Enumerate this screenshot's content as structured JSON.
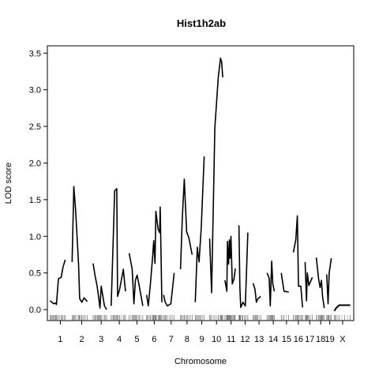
{
  "chart_data": {
    "type": "line",
    "title": "Hist1h2ab",
    "xlabel": "Chromosome",
    "ylabel": "LOD score",
    "ylim": [
      -0.15,
      3.6
    ],
    "yticks": [
      "0.0",
      "0.5",
      "1.0",
      "1.5",
      "2.0",
      "2.5",
      "3.0",
      "3.5"
    ],
    "chromosomes": [
      {
        "name": "1",
        "length": 195,
        "points": [
          [
            3,
            0.12
          ],
          [
            20,
            0.1
          ],
          [
            35,
            0.08
          ],
          [
            50,
            0.09
          ],
          [
            62,
            0.07
          ],
          [
            80,
            0.42
          ],
          [
            105,
            0.44
          ],
          [
            122,
            0.58
          ],
          [
            142,
            0.68
          ]
        ]
      },
      {
        "name": "2",
        "length": 182,
        "points": [
          [
            2,
            0.65
          ],
          [
            18,
            1.68
          ],
          [
            35,
            1.35
          ],
          [
            62,
            0.62
          ],
          [
            72,
            0.15
          ],
          [
            92,
            0.1
          ],
          [
            112,
            0.16
          ],
          [
            142,
            0.11
          ]
        ]
      },
      {
        "name": "3",
        "length": 160,
        "points": [
          [
            5,
            0.63
          ],
          [
            25,
            0.45
          ],
          [
            42,
            0.32
          ],
          [
            55,
            0.18
          ],
          [
            68,
            0.02
          ],
          [
            80,
            0.32
          ],
          [
            110,
            0.05
          ],
          [
            130,
            0.0
          ]
        ]
      },
      {
        "name": "4",
        "length": 156,
        "points": [
          [
            3,
            0.05
          ],
          [
            22,
            0.96
          ],
          [
            35,
            1.62
          ],
          [
            55,
            1.65
          ],
          [
            62,
            0.18
          ],
          [
            80,
            0.27
          ],
          [
            115,
            0.55
          ],
          [
            135,
            0.25
          ]
        ]
      },
      {
        "name": "5",
        "length": 152,
        "points": [
          [
            5,
            0.77
          ],
          [
            32,
            0.55
          ],
          [
            48,
            0.08
          ],
          [
            62,
            0.4
          ],
          [
            78,
            0.47
          ],
          [
            100,
            0.3
          ],
          [
            130,
            0.05
          ]
        ]
      },
      {
        "name": "6",
        "length": 150,
        "points": [
          [
            5,
            0.2
          ],
          [
            20,
            0.05
          ],
          [
            40,
            0.35
          ],
          [
            62,
            0.75
          ],
          [
            70,
            0.94
          ],
          [
            82,
            0.63
          ],
          [
            90,
            1.34
          ],
          [
            110,
            1.1
          ],
          [
            125,
            1.05
          ],
          [
            130,
            1.4
          ],
          [
            145,
            0.1
          ]
        ]
      },
      {
        "name": "7",
        "length": 145,
        "points": [
          [
            2,
            0.2
          ],
          [
            18,
            0.1
          ],
          [
            38,
            0.05
          ],
          [
            70,
            0.08
          ],
          [
            100,
            0.5
          ]
        ]
      },
      {
        "name": "8",
        "length": 130,
        "points": [
          [
            5,
            0.55
          ],
          [
            22,
            1.25
          ],
          [
            40,
            1.78
          ],
          [
            62,
            1.06
          ],
          [
            82,
            0.98
          ],
          [
            112,
            0.75
          ]
        ]
      },
      {
        "name": "9",
        "length": 125,
        "points": [
          [
            3,
            0.1
          ],
          [
            22,
            0.85
          ],
          [
            38,
            0.65
          ],
          [
            58,
            1.12
          ],
          [
            85,
            2.09
          ]
        ]
      },
      {
        "name": "10",
        "length": 130,
        "points": [
          [
            2,
            0.97
          ],
          [
            20,
            0.23
          ],
          [
            50,
            2.48
          ],
          [
            82,
            3.18
          ],
          [
            102,
            3.43
          ],
          [
            112,
            3.38
          ],
          [
            122,
            3.17
          ]
        ]
      },
      {
        "name": "11",
        "length": 122,
        "points": [
          [
            5,
            0.4
          ],
          [
            22,
            0.25
          ],
          [
            28,
            0.93
          ],
          [
            38,
            0.62
          ],
          [
            45,
            0.95
          ],
          [
            52,
            0.7
          ],
          [
            60,
            1.0
          ],
          [
            72,
            0.35
          ],
          [
            88,
            0.42
          ],
          [
            100,
            0.56
          ]
        ]
      },
      {
        "name": "12",
        "length": 120,
        "points": [
          [
            3,
            1.15
          ],
          [
            12,
            0.3
          ],
          [
            20,
            0.03
          ],
          [
            40,
            0.1
          ],
          [
            62,
            0.05
          ],
          [
            85,
            1.05
          ]
        ]
      },
      {
        "name": "13",
        "length": 120,
        "points": [
          [
            5,
            0.36
          ],
          [
            22,
            0.28
          ],
          [
            35,
            0.1
          ],
          [
            50,
            0.15
          ],
          [
            75,
            0.18
          ]
        ]
      },
      {
        "name": "14",
        "length": 125,
        "points": [
          [
            5,
            0.5
          ],
          [
            25,
            0.43
          ],
          [
            35,
            0.05
          ],
          [
            48,
            0.66
          ],
          [
            58,
            0.35
          ],
          [
            72,
            0.25
          ]
        ]
      },
      {
        "name": "15",
        "length": 103,
        "points": [
          [
            3,
            0.5
          ],
          [
            28,
            0.25
          ],
          [
            72,
            0.24
          ]
        ]
      },
      {
        "name": "16",
        "length": 98,
        "points": [
          [
            3,
            0.78
          ],
          [
            25,
            0.95
          ],
          [
            40,
            1.28
          ],
          [
            50,
            0.32
          ],
          [
            72,
            0.32
          ],
          [
            88,
            0.03
          ]
        ]
      },
      {
        "name": "17",
        "length": 95,
        "points": [
          [
            5,
            0.65
          ],
          [
            18,
            0.12
          ],
          [
            25,
            0.5
          ],
          [
            40,
            0.33
          ],
          [
            72,
            0.44
          ]
        ]
      },
      {
        "name": "18",
        "length": 90,
        "points": [
          [
            5,
            0.71
          ],
          [
            25,
            0.43
          ],
          [
            40,
            0.3
          ],
          [
            52,
            0.4
          ],
          [
            62,
            0.18
          ],
          [
            78,
            0.02
          ]
        ]
      },
      {
        "name": "19",
        "length": 61,
        "points": [
          [
            3,
            0.48
          ],
          [
            15,
            0.08
          ],
          [
            25,
            0.5
          ],
          [
            45,
            0.7
          ]
        ]
      },
      {
        "name": "X",
        "length": 160,
        "points": [
          [
            3,
            -0.02
          ],
          [
            20,
            0.02
          ],
          [
            48,
            0.06
          ],
          [
            100,
            0.06
          ],
          [
            150,
            0.06
          ]
        ]
      }
    ]
  }
}
